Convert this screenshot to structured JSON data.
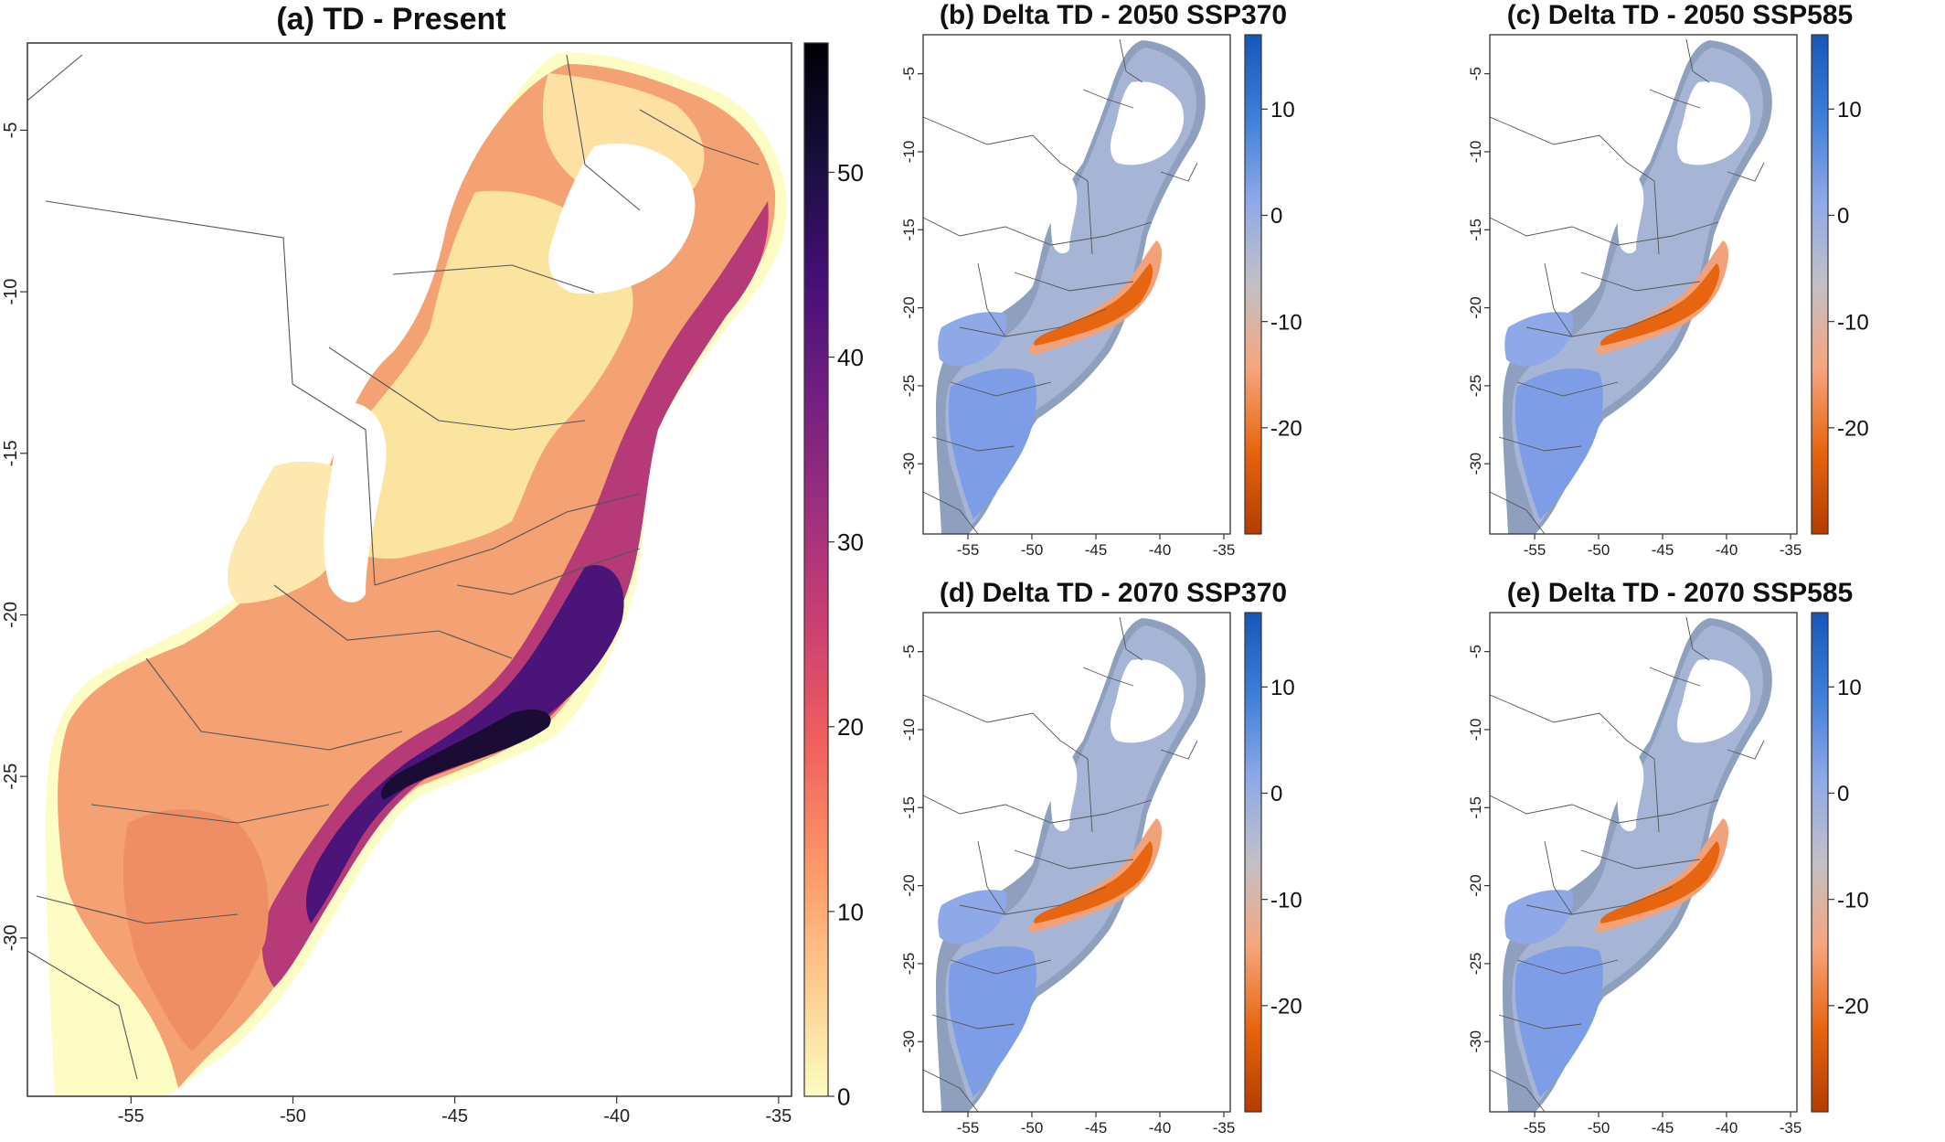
{
  "panels": [
    {
      "id": "a",
      "title": "(a) TD - Present",
      "colormap": "magma-reversed",
      "colorbar": {
        "ticks": [
          0,
          10,
          20,
          30,
          40,
          50
        ],
        "range": [
          0,
          57
        ]
      },
      "x_ticks": [
        "-55",
        "-50",
        "-45",
        "-40",
        "-35"
      ],
      "y_ticks": [
        "-5",
        "-10",
        "-15",
        "-20",
        "-25",
        "-30"
      ]
    },
    {
      "id": "b",
      "title": "(b) Delta TD - 2050 SSP370",
      "colormap": "blue-grey-orange",
      "colorbar": {
        "ticks": [
          10,
          0,
          -10,
          -20
        ],
        "range": [
          -30,
          17
        ]
      },
      "x_ticks": [
        "-55",
        "-50",
        "-45",
        "-40",
        "-35"
      ],
      "y_ticks": [
        "-5",
        "-10",
        "-15",
        "-20",
        "-25",
        "-30"
      ]
    },
    {
      "id": "c",
      "title": "(c) Delta TD - 2050 SSP585",
      "colormap": "blue-grey-orange",
      "colorbar": {
        "ticks": [
          10,
          0,
          -10,
          -20
        ],
        "range": [
          -30,
          17
        ]
      },
      "x_ticks": [
        "-55",
        "-50",
        "-45",
        "-40",
        "-35"
      ],
      "y_ticks": [
        "-5",
        "-10",
        "-15",
        "-20",
        "-25",
        "-30"
      ]
    },
    {
      "id": "d",
      "title": "(d) Delta TD - 2070 SSP370",
      "colormap": "blue-grey-orange",
      "colorbar": {
        "ticks": [
          10,
          0,
          -10,
          -20
        ],
        "range": [
          -30,
          17
        ]
      },
      "x_ticks": [
        "-55",
        "-50",
        "-45",
        "-40",
        "-35"
      ],
      "y_ticks": [
        "-5",
        "-10",
        "-15",
        "-20",
        "-25",
        "-30"
      ]
    },
    {
      "id": "e",
      "title": "(e) Delta TD - 2070 SSP585",
      "colormap": "blue-grey-orange",
      "colorbar": {
        "ticks": [
          10,
          0,
          -10,
          -20
        ],
        "range": [
          -30,
          17
        ]
      },
      "x_ticks": [
        "-55",
        "-50",
        "-45",
        "-40",
        "-35"
      ],
      "y_ticks": [
        "-5",
        "-10",
        "-15",
        "-20",
        "-25",
        "-30"
      ]
    }
  ],
  "colors": {
    "magma_stops": [
      "#fcfdbf",
      "#fec98d",
      "#fd9567",
      "#f1605d",
      "#cd4071",
      "#9e2f7f",
      "#721f81",
      "#440f76",
      "#180f3d",
      "#000004"
    ],
    "delta_stops": [
      "#b33c00",
      "#e8650f",
      "#f6a57e",
      "#c2c0c6",
      "#8fa9e8",
      "#3f7fd9",
      "#1656b8"
    ],
    "frame": "#333333",
    "borders": "#555555"
  }
}
